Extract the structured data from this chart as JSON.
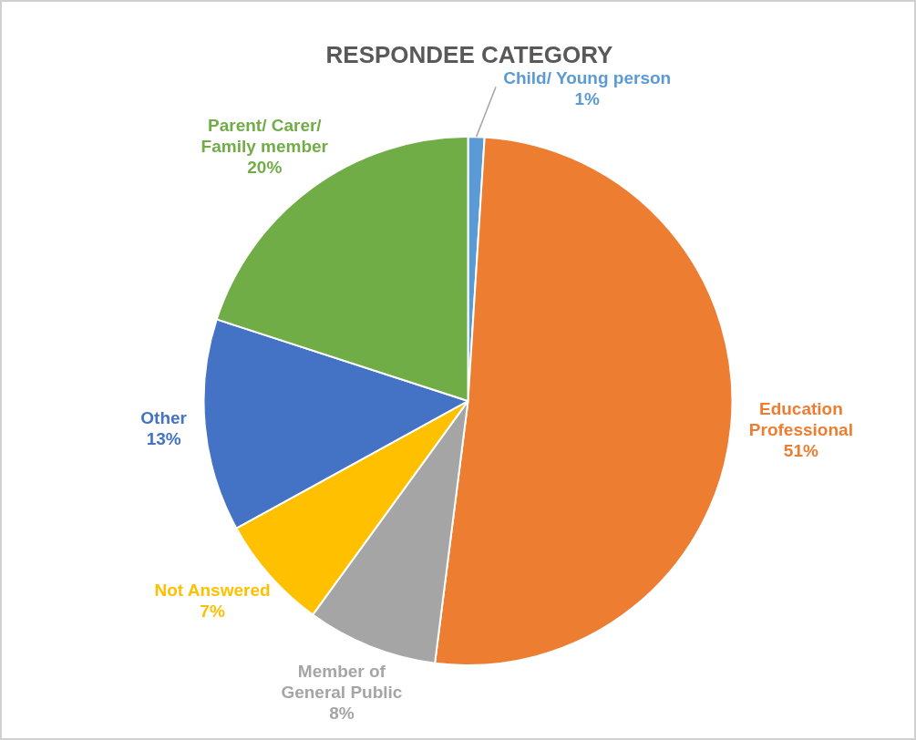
{
  "chart_data": {
    "type": "pie",
    "title": "RESPONDEE CATEGORY",
    "categories": [
      "Child/ Young person",
      "Education Professional",
      "Member of General Public",
      "Not Answered",
      "Other",
      "Parent/ Carer/ Family member"
    ],
    "values": [
      1,
      51,
      8,
      7,
      13,
      20
    ],
    "value_labels": [
      "1%",
      "51%",
      "8%",
      "7%",
      "13%",
      "20%"
    ],
    "colors": [
      "#5b9bd5",
      "#ed7d31",
      "#a5a5a5",
      "#ffc000",
      "#4472c4",
      "#70ad47"
    ],
    "legend": false
  }
}
